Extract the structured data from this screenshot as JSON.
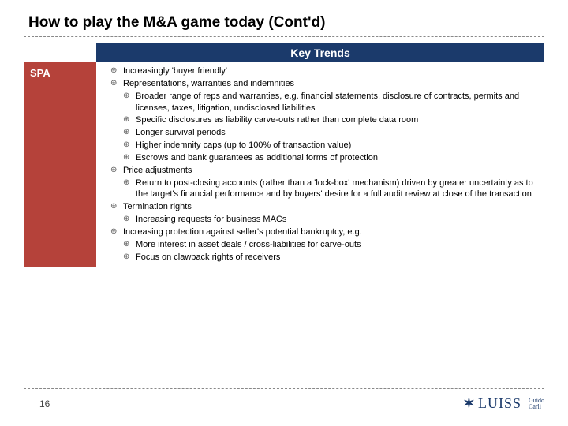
{
  "title": "How to play the M&A game today (Cont'd)",
  "header": "Key Trends",
  "leftLabel": "SPA",
  "bullets": [
    {
      "text": "Increasingly 'buyer friendly'"
    },
    {
      "text": "Representations, warranties and indemnities",
      "children": [
        "Broader range of reps and warranties, e.g. financial statements, disclosure of contracts, permits and licenses, taxes, litigation, undisclosed liabilities",
        "Specific disclosures as liability carve-outs rather than complete data room",
        "Longer survival periods",
        "Higher indemnity caps (up to 100% of transaction value)",
        "Escrows and bank guarantees as additional forms of protection"
      ]
    },
    {
      "text": "Price adjustments",
      "children": [
        "Return to post-closing accounts (rather than a 'lock-box' mechanism) driven by greater uncertainty as to the target's financial performance and by buyers' desire for a full audit review at close of the transaction"
      ]
    },
    {
      "text": "Termination rights",
      "children": [
        "Increasing requests for business MACs"
      ]
    },
    {
      "text": "Increasing protection against seller's potential bankruptcy, e.g.",
      "children": [
        "More interest in asset deals / cross-liabilities for carve-outs",
        "Focus on clawback rights of receivers"
      ]
    }
  ],
  "pageNumber": "16",
  "logo": {
    "main": "LUISS",
    "sub1": "Guido",
    "sub2": "Carli"
  },
  "colors": {
    "headerBg": "#1b3a6b",
    "leftBg": "#b5423a"
  }
}
